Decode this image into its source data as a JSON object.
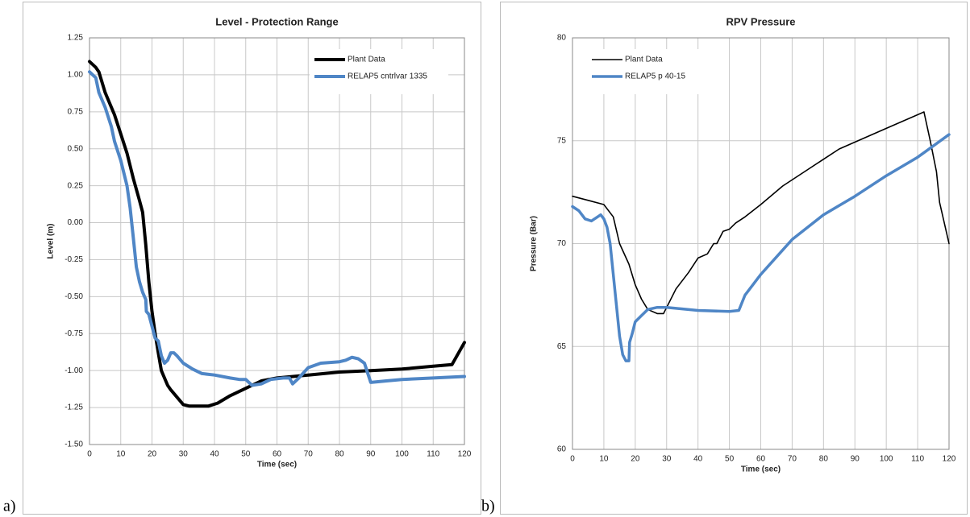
{
  "chart_data": [
    {
      "type": "line",
      "panel_label": "a)",
      "title": "Level - Protection Range",
      "x_label": "Time (sec)",
      "y_label": "Level (m)",
      "xlim": [
        0,
        120
      ],
      "xticks": [
        0,
        10,
        20,
        30,
        40,
        50,
        60,
        70,
        80,
        90,
        100,
        110,
        120
      ],
      "ylim": [
        -1.5,
        1.25
      ],
      "yticks": [
        {
          "value": -1.5,
          "label": "-1.50"
        },
        -1.25,
        {
          "value": -1,
          "label": "-1.00"
        },
        -0.75,
        {
          "value": -0.5,
          "label": "-0.50"
        },
        -0.25,
        {
          "value": 0,
          "label": "0.00"
        },
        0.25,
        {
          "value": 0.5,
          "label": "0.50"
        },
        0.75,
        {
          "value": 1,
          "label": "1.00"
        },
        1.25
      ],
      "grid": true,
      "legend": "upper right",
      "series": [
        {
          "name": "Plant Data",
          "color": "#000000",
          "line_width": 4,
          "x": [
            0,
            2,
            3,
            5,
            8,
            10,
            12,
            14,
            16,
            17,
            18,
            19,
            20,
            21,
            22,
            23,
            25,
            26,
            28,
            30,
            32,
            35,
            38,
            41,
            45,
            50,
            55,
            60,
            70,
            80,
            90,
            100,
            110,
            116,
            120
          ],
          "values": [
            1.09,
            1.05,
            1.02,
            0.88,
            0.73,
            0.6,
            0.47,
            0.3,
            0.15,
            0.07,
            -0.15,
            -0.4,
            -0.6,
            -0.75,
            -0.88,
            -1.0,
            -1.1,
            -1.13,
            -1.18,
            -1.23,
            -1.24,
            -1.24,
            -1.24,
            -1.22,
            -1.17,
            -1.12,
            -1.07,
            -1.05,
            -1.03,
            -1.01,
            -1.0,
            -0.99,
            -0.97,
            -0.96,
            -0.81
          ]
        },
        {
          "name": "RELAP5 cntrlvar 1335",
          "color": "#4f86c6",
          "line_width": 4,
          "x": [
            0,
            2,
            3,
            5,
            7,
            8,
            10,
            12,
            13,
            14,
            15,
            16,
            17,
            18,
            18.2,
            19,
            20,
            21,
            22,
            23,
            24,
            25,
            26,
            27,
            28,
            30,
            33,
            36,
            40,
            45,
            48,
            50,
            52,
            55,
            58,
            62,
            64,
            65,
            67,
            70,
            74,
            80,
            82,
            84,
            86,
            88,
            90,
            95,
            100,
            110,
            120
          ],
          "values": [
            1.02,
            0.98,
            0.88,
            0.78,
            0.65,
            0.55,
            0.42,
            0.25,
            0.1,
            -0.1,
            -0.3,
            -0.4,
            -0.47,
            -0.52,
            -0.6,
            -0.62,
            -0.7,
            -0.78,
            -0.8,
            -0.9,
            -0.95,
            -0.93,
            -0.88,
            -0.88,
            -0.9,
            -0.95,
            -0.99,
            -1.02,
            -1.03,
            -1.05,
            -1.06,
            -1.06,
            -1.1,
            -1.09,
            -1.06,
            -1.05,
            -1.05,
            -1.09,
            -1.05,
            -0.98,
            -0.95,
            -0.94,
            -0.93,
            -0.91,
            -0.92,
            -0.95,
            -1.08,
            -1.07,
            -1.06,
            -1.05,
            -1.04
          ]
        }
      ]
    },
    {
      "type": "line",
      "panel_label": "b)",
      "title": "RPV Pressure",
      "x_label": "Time (sec)",
      "y_label": "Pressure (Bar)",
      "xlim": [
        0,
        120
      ],
      "xticks": [
        0,
        10,
        20,
        30,
        40,
        50,
        60,
        70,
        80,
        90,
        100,
        110,
        120
      ],
      "ylim": [
        60,
        80
      ],
      "yticks": [
        60,
        65,
        70,
        75,
        80
      ],
      "grid": true,
      "legend": "upper left",
      "series": [
        {
          "name": "Plant Data",
          "color": "#000000",
          "line_width": 1.6,
          "x": [
            0,
            5,
            10,
            13,
            15,
            18,
            20,
            22,
            24,
            27,
            29,
            30,
            33,
            37,
            40,
            43,
            45,
            46,
            48,
            50,
            52,
            55,
            60,
            67,
            75,
            85,
            100,
            112,
            114,
            116,
            117,
            120
          ],
          "values": [
            72.3,
            72.1,
            71.9,
            71.3,
            70.0,
            69.0,
            68.0,
            67.3,
            66.8,
            66.6,
            66.6,
            66.9,
            67.8,
            68.6,
            69.3,
            69.5,
            70.0,
            70.0,
            70.6,
            70.7,
            71.0,
            71.3,
            71.9,
            72.8,
            73.6,
            74.6,
            75.6,
            76.4,
            75.0,
            73.5,
            72.0,
            70.0
          ]
        },
        {
          "name": "RELAP5 p 40-15",
          "color": "#4f86c6",
          "line_width": 3.5,
          "x": [
            0,
            2,
            4,
            6,
            8,
            9,
            10,
            11,
            12,
            13,
            14,
            15,
            16,
            17,
            18,
            18.2,
            19,
            20,
            22,
            24,
            27,
            30,
            40,
            50,
            53,
            55,
            60,
            70,
            80,
            90,
            100,
            110,
            120
          ],
          "values": [
            71.8,
            71.6,
            71.2,
            71.1,
            71.3,
            71.4,
            71.2,
            70.8,
            70.0,
            68.5,
            67.0,
            65.5,
            64.6,
            64.3,
            64.3,
            65.2,
            65.6,
            66.2,
            66.5,
            66.8,
            66.9,
            66.9,
            66.75,
            66.7,
            66.75,
            67.5,
            68.5,
            70.2,
            71.4,
            72.3,
            73.3,
            74.2,
            75.3
          ]
        }
      ]
    }
  ]
}
